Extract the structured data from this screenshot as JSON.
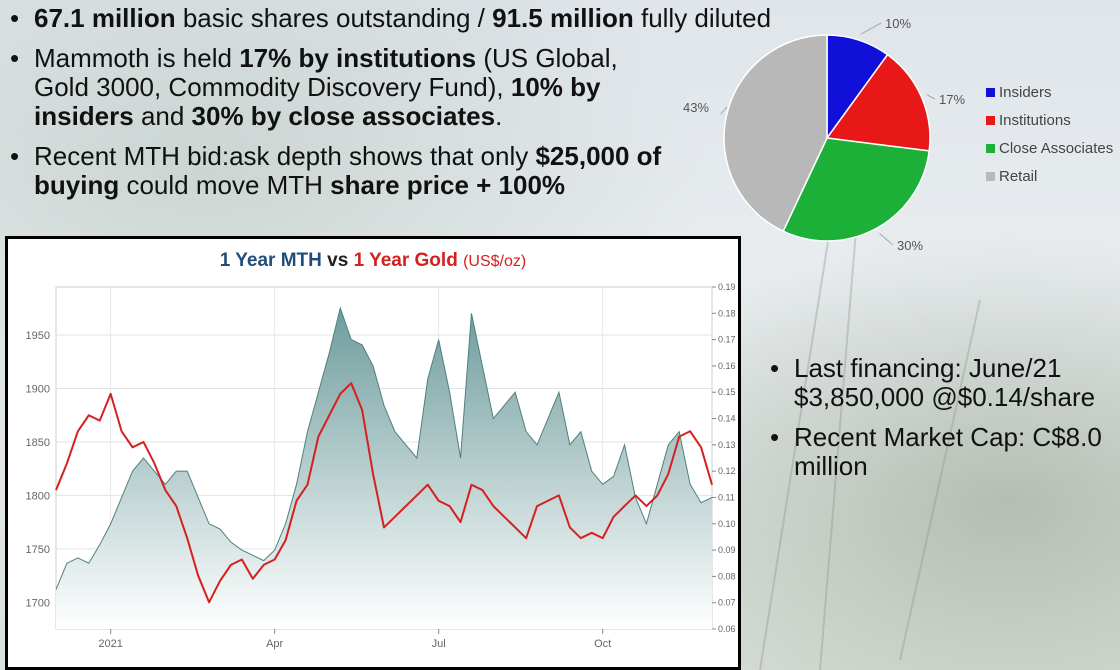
{
  "bullets": [
    {
      "parts": [
        {
          "t": "67.1 million",
          "b": true
        },
        {
          "t": " basic shares outstanding / ",
          "b": false
        },
        {
          "t": "91.5 million",
          "b": true
        },
        {
          "t": " fully diluted",
          "b": false
        }
      ]
    },
    {
      "parts": [
        {
          "t": "Mammoth is held ",
          "b": false
        },
        {
          "t": "17% by institutions",
          "b": true
        },
        {
          "t": " (US Global, Gold 3000, Commodity Discovery Fund), ",
          "b": false
        },
        {
          "t": "10% by insiders",
          "b": true
        },
        {
          "t": " and ",
          "b": false
        },
        {
          "t": "30% by close associates",
          "b": true
        },
        {
          "t": ".",
          "b": false
        }
      ]
    },
    {
      "parts": [
        {
          "t": "Recent MTH bid:ask depth shows that only ",
          "b": false
        },
        {
          "t": "$25,000 of buying",
          "b": true
        },
        {
          "t": " could move MTH ",
          "b": false
        },
        {
          "t": "share price + 100%",
          "b": true
        }
      ]
    }
  ],
  "right_bullets": [
    {
      "lines": [
        "Last financing: June/21",
        "$3,850,000 @$0.14/share"
      ]
    },
    {
      "lines": [
        "Recent Market Cap: C$8.0",
        "million"
      ]
    }
  ],
  "chart_data": [
    {
      "type": "pie",
      "categories": [
        "Insiders",
        "Institutions",
        "Close Associates",
        "Retail"
      ],
      "values": [
        10,
        17,
        30,
        43
      ],
      "labels": [
        "10%",
        "17%",
        "30%",
        "43%"
      ],
      "colors": [
        "#1010d8",
        "#e81818",
        "#1cb038",
        "#b8b8b8"
      ],
      "legend_position": "right"
    },
    {
      "type": "line",
      "title_parts": {
        "mth": "1 Year MTH",
        "vs": "vs",
        "gold": "1 Year Gold",
        "unit": "(US$/oz)"
      },
      "x_ticks": [
        "2021",
        "Apr",
        "Jul",
        "Oct"
      ],
      "x_tick_positions": [
        1,
        4,
        7,
        10
      ],
      "x_range": [
        0,
        12
      ],
      "y_left": {
        "ticks": [
          "1700",
          "1750",
          "1800",
          "1850",
          "1900",
          "1950"
        ],
        "range": [
          1675,
          1995
        ]
      },
      "y_right": {
        "ticks": [
          "0.06",
          "0.07",
          "0.08",
          "0.09",
          "0.10",
          "0.11",
          "0.12",
          "0.13",
          "0.14",
          "0.15",
          "0.16",
          "0.17",
          "0.18",
          "0.19"
        ],
        "range": [
          0.06,
          0.19
        ]
      },
      "grid": true,
      "series": [
        {
          "name": "1 Year MTH",
          "axis": "right",
          "style": "area",
          "color": "#6f9c9c",
          "x": [
            0,
            0.2,
            0.4,
            0.6,
            0.8,
            1.0,
            1.2,
            1.4,
            1.6,
            1.8,
            2.0,
            2.2,
            2.4,
            2.6,
            2.8,
            3.0,
            3.2,
            3.4,
            3.6,
            3.8,
            4.0,
            4.2,
            4.4,
            4.6,
            4.8,
            5.0,
            5.2,
            5.4,
            5.6,
            5.8,
            6.0,
            6.2,
            6.4,
            6.6,
            6.8,
            7.0,
            7.2,
            7.4,
            7.6,
            7.8,
            8.0,
            8.2,
            8.4,
            8.6,
            8.8,
            9.0,
            9.2,
            9.4,
            9.6,
            9.8,
            10.0,
            10.2,
            10.4,
            10.6,
            10.8,
            11.0,
            11.2,
            11.4,
            11.6,
            11.8,
            12.0
          ],
          "values": [
            0.075,
            0.085,
            0.087,
            0.085,
            0.092,
            0.1,
            0.11,
            0.12,
            0.125,
            0.12,
            0.115,
            0.12,
            0.12,
            0.11,
            0.1,
            0.098,
            0.093,
            0.09,
            0.088,
            0.086,
            0.09,
            0.1,
            0.115,
            0.135,
            0.15,
            0.165,
            0.182,
            0.17,
            0.168,
            0.16,
            0.145,
            0.135,
            0.13,
            0.125,
            0.155,
            0.17,
            0.15,
            0.125,
            0.18,
            0.16,
            0.14,
            0.145,
            0.15,
            0.135,
            0.13,
            0.14,
            0.15,
            0.13,
            0.135,
            0.12,
            0.115,
            0.118,
            0.13,
            0.11,
            0.1,
            0.115,
            0.13,
            0.135,
            0.115,
            0.108,
            0.11
          ]
        },
        {
          "name": "1 Year Gold",
          "axis": "left",
          "style": "line",
          "color": "#d62020",
          "x": [
            0,
            0.2,
            0.4,
            0.6,
            0.8,
            1.0,
            1.2,
            1.4,
            1.6,
            1.8,
            2.0,
            2.2,
            2.4,
            2.6,
            2.8,
            3.0,
            3.2,
            3.4,
            3.6,
            3.8,
            4.0,
            4.2,
            4.4,
            4.6,
            4.8,
            5.0,
            5.2,
            5.4,
            5.6,
            5.8,
            6.0,
            6.2,
            6.4,
            6.6,
            6.8,
            7.0,
            7.2,
            7.4,
            7.6,
            7.8,
            8.0,
            8.2,
            8.4,
            8.6,
            8.8,
            9.0,
            9.2,
            9.4,
            9.6,
            9.8,
            10.0,
            10.2,
            10.4,
            10.6,
            10.8,
            11.0,
            11.2,
            11.4,
            11.6,
            11.8,
            12.0
          ],
          "values": [
            1805,
            1830,
            1860,
            1875,
            1870,
            1895,
            1860,
            1845,
            1850,
            1830,
            1805,
            1790,
            1760,
            1725,
            1700,
            1720,
            1735,
            1740,
            1722,
            1735,
            1740,
            1758,
            1795,
            1810,
            1855,
            1875,
            1895,
            1905,
            1880,
            1820,
            1770,
            1780,
            1790,
            1800,
            1810,
            1795,
            1790,
            1775,
            1810,
            1805,
            1790,
            1780,
            1770,
            1760,
            1790,
            1795,
            1800,
            1770,
            1760,
            1765,
            1760,
            1780,
            1790,
            1800,
            1790,
            1800,
            1820,
            1855,
            1860,
            1845,
            1810
          ]
        }
      ]
    }
  ]
}
